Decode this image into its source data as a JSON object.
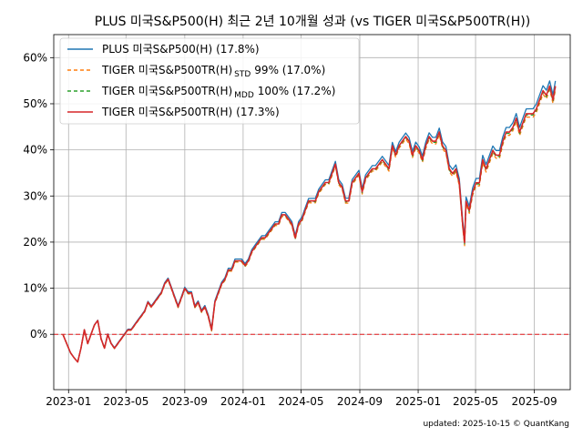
{
  "chart_data": {
    "type": "line",
    "title": "PLUS 미국S&P500(H) 최근 2년 10개월 성과 (vs TIGER 미국S&P500TR(H))",
    "xlabel": "",
    "ylabel": "",
    "x_ticks": [
      "2023-01",
      "2023-05",
      "2023-09",
      "2024-01",
      "2024-05",
      "2024-09",
      "2025-01",
      "2025-05",
      "2025-09"
    ],
    "x_range": [
      "2022-12-01",
      "2025-11-15"
    ],
    "y_ticks": [
      0,
      10,
      20,
      30,
      40,
      50,
      60
    ],
    "y_tick_labels": [
      "0%",
      "10%",
      "20%",
      "30%",
      "40%",
      "50%",
      "60%"
    ],
    "ylim": [
      -12,
      65
    ],
    "grid": true,
    "legend_position": "top-left",
    "reference_line": {
      "y": 0,
      "style": "dashed",
      "color": "#e41a1c"
    },
    "series": [
      {
        "name": "PLUS 미국S&P500(H)",
        "legend_main": "PLUS 미국S&P500(H)",
        "legend_sub": "",
        "legend_suffix": "(17.8%)",
        "color": "#1f77b4",
        "dash": "solid",
        "offset": 0.6,
        "points": [
          [
            "2022-12-20",
            0
          ],
          [
            "2022-12-28",
            -2
          ],
          [
            "2023-01-05",
            -4
          ],
          [
            "2023-01-12",
            -5
          ],
          [
            "2023-01-20",
            -6
          ],
          [
            "2023-01-27",
            -3
          ],
          [
            "2023-02-03",
            1
          ],
          [
            "2023-02-10",
            -2
          ],
          [
            "2023-02-17",
            0
          ],
          [
            "2023-02-24",
            2
          ],
          [
            "2023-03-03",
            3
          ],
          [
            "2023-03-10",
            -1
          ],
          [
            "2023-03-17",
            -3
          ],
          [
            "2023-03-24",
            0
          ],
          [
            "2023-03-31",
            -2
          ],
          [
            "2023-04-07",
            -3
          ],
          [
            "2023-04-14",
            -2
          ],
          [
            "2023-04-21",
            -1
          ],
          [
            "2023-04-28",
            0
          ],
          [
            "2023-05-05",
            1
          ],
          [
            "2023-05-12",
            1
          ],
          [
            "2023-05-19",
            2
          ],
          [
            "2023-05-26",
            3
          ],
          [
            "2023-06-02",
            4
          ],
          [
            "2023-06-09",
            5
          ],
          [
            "2023-06-16",
            7
          ],
          [
            "2023-06-23",
            6
          ],
          [
            "2023-06-30",
            7
          ],
          [
            "2023-07-07",
            8
          ],
          [
            "2023-07-14",
            9
          ],
          [
            "2023-07-21",
            11
          ],
          [
            "2023-07-28",
            12
          ],
          [
            "2023-08-04",
            10
          ],
          [
            "2023-08-11",
            8
          ],
          [
            "2023-08-18",
            6
          ],
          [
            "2023-08-25",
            8
          ],
          [
            "2023-09-01",
            10
          ],
          [
            "2023-09-08",
            9
          ],
          [
            "2023-09-15",
            9
          ],
          [
            "2023-09-22",
            6
          ],
          [
            "2023-09-29",
            7
          ],
          [
            "2023-10-06",
            5
          ],
          [
            "2023-10-13",
            6
          ],
          [
            "2023-10-20",
            4
          ],
          [
            "2023-10-27",
            1
          ],
          [
            "2023-11-03",
            7
          ],
          [
            "2023-11-10",
            9
          ],
          [
            "2023-11-17",
            11
          ],
          [
            "2023-11-24",
            12
          ],
          [
            "2023-12-01",
            14
          ],
          [
            "2023-12-08",
            14
          ],
          [
            "2023-12-15",
            16
          ],
          [
            "2023-12-22",
            16
          ],
          [
            "2023-12-29",
            16
          ],
          [
            "2024-01-05",
            15
          ],
          [
            "2024-01-12",
            16
          ],
          [
            "2024-01-19",
            18
          ],
          [
            "2024-01-26",
            19
          ],
          [
            "2024-02-02",
            20
          ],
          [
            "2024-02-09",
            21
          ],
          [
            "2024-02-16",
            21
          ],
          [
            "2024-02-23",
            22
          ],
          [
            "2024-03-01",
            23
          ],
          [
            "2024-03-08",
            24
          ],
          [
            "2024-03-15",
            24
          ],
          [
            "2024-03-22",
            26
          ],
          [
            "2024-03-29",
            26
          ],
          [
            "2024-04-05",
            25
          ],
          [
            "2024-04-12",
            24
          ],
          [
            "2024-04-19",
            21
          ],
          [
            "2024-04-26",
            24
          ],
          [
            "2024-05-03",
            25
          ],
          [
            "2024-05-10",
            27
          ],
          [
            "2024-05-17",
            29
          ],
          [
            "2024-05-24",
            29
          ],
          [
            "2024-05-31",
            29
          ],
          [
            "2024-06-07",
            31
          ],
          [
            "2024-06-14",
            32
          ],
          [
            "2024-06-21",
            33
          ],
          [
            "2024-06-28",
            33
          ],
          [
            "2024-07-05",
            35
          ],
          [
            "2024-07-12",
            37
          ],
          [
            "2024-07-19",
            33
          ],
          [
            "2024-07-26",
            32
          ],
          [
            "2024-08-02",
            29
          ],
          [
            "2024-08-09",
            29
          ],
          [
            "2024-08-16",
            33
          ],
          [
            "2024-08-23",
            34
          ],
          [
            "2024-08-30",
            35
          ],
          [
            "2024-09-06",
            31
          ],
          [
            "2024-09-13",
            34
          ],
          [
            "2024-09-20",
            35
          ],
          [
            "2024-09-27",
            36
          ],
          [
            "2024-10-04",
            36
          ],
          [
            "2024-10-11",
            37
          ],
          [
            "2024-10-18",
            38
          ],
          [
            "2024-10-25",
            37
          ],
          [
            "2024-11-01",
            36
          ],
          [
            "2024-11-08",
            41
          ],
          [
            "2024-11-15",
            39
          ],
          [
            "2024-11-22",
            41
          ],
          [
            "2024-11-29",
            42
          ],
          [
            "2024-12-06",
            43
          ],
          [
            "2024-12-13",
            42
          ],
          [
            "2024-12-20",
            39
          ],
          [
            "2024-12-27",
            41
          ],
          [
            "2025-01-03",
            40
          ],
          [
            "2025-01-10",
            38
          ],
          [
            "2025-01-17",
            41
          ],
          [
            "2025-01-24",
            43
          ],
          [
            "2025-01-31",
            42
          ],
          [
            "2025-02-07",
            42
          ],
          [
            "2025-02-14",
            44
          ],
          [
            "2025-02-21",
            41
          ],
          [
            "2025-02-28",
            40
          ],
          [
            "2025-03-07",
            36
          ],
          [
            "2025-03-14",
            35
          ],
          [
            "2025-03-21",
            36
          ],
          [
            "2025-03-28",
            33
          ],
          [
            "2025-04-04",
            24
          ],
          [
            "2025-04-08",
            20
          ],
          [
            "2025-04-11",
            29
          ],
          [
            "2025-04-18",
            27
          ],
          [
            "2025-04-25",
            31
          ],
          [
            "2025-05-02",
            33
          ],
          [
            "2025-05-09",
            33
          ],
          [
            "2025-05-16",
            38
          ],
          [
            "2025-05-23",
            36
          ],
          [
            "2025-05-30",
            38
          ],
          [
            "2025-06-06",
            40
          ],
          [
            "2025-06-13",
            39
          ],
          [
            "2025-06-20",
            39
          ],
          [
            "2025-06-27",
            42
          ],
          [
            "2025-07-04",
            44
          ],
          [
            "2025-07-11",
            44
          ],
          [
            "2025-07-18",
            45
          ],
          [
            "2025-07-25",
            47
          ],
          [
            "2025-08-01",
            44
          ],
          [
            "2025-08-08",
            46
          ],
          [
            "2025-08-15",
            48
          ],
          [
            "2025-08-22",
            48
          ],
          [
            "2025-08-29",
            48
          ],
          [
            "2025-09-05",
            49
          ],
          [
            "2025-09-12",
            51
          ],
          [
            "2025-09-19",
            53
          ],
          [
            "2025-09-26",
            52
          ],
          [
            "2025-10-03",
            54
          ],
          [
            "2025-10-10",
            51
          ],
          [
            "2025-10-15",
            54
          ]
        ]
      },
      {
        "name": "TIGER 미국S&P500TR(H) STD 99% (17.0%)",
        "legend_main": "TIGER 미국S&P500TR(H)",
        "legend_sub": "STD",
        "legend_suffix": "99% (17.0%)",
        "color": "#ff7f0e",
        "dash": "4,3",
        "offset": -0.6,
        "points": []
      },
      {
        "name": "TIGER 미국S&P500TR(H) MDD 100% (17.2%)",
        "legend_main": "TIGER 미국S&P500TR(H)",
        "legend_sub": "MDD",
        "legend_suffix": "100% (17.2%)",
        "color": "#2ca02c",
        "dash": "4,3",
        "offset": -0.3,
        "points": []
      },
      {
        "name": "TIGER 미국S&P500TR(H) (17.3%)",
        "legend_main": "TIGER 미국S&P500TR(H)",
        "legend_sub": "",
        "legend_suffix": "(17.3%)",
        "color": "#d62728",
        "dash": "solid",
        "offset": -0.1,
        "points": []
      }
    ]
  },
  "footer": {
    "updated": "updated: 2025-10-15 © QuantKang"
  }
}
